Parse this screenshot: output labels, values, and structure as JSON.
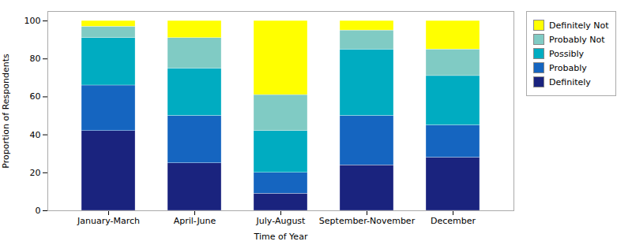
{
  "chart_data": {
    "type": "bar",
    "stacked": true,
    "xlabel": "Time of Year",
    "ylabel": "Proportion of Respondents",
    "categories": [
      "January-March",
      "April-June",
      "July-August",
      "September-November",
      "December"
    ],
    "series": [
      {
        "name": "Definitely",
        "color": "#1a237e",
        "values": [
          42,
          25,
          9,
          24,
          28
        ]
      },
      {
        "name": "Probably",
        "color": "#1565c0",
        "values": [
          24,
          25,
          11,
          26,
          17
        ]
      },
      {
        "name": "Possibly",
        "color": "#00acc1",
        "values": [
          25,
          25,
          22,
          35,
          26
        ]
      },
      {
        "name": "Probably Not",
        "color": "#80cbc4",
        "values": [
          6,
          16,
          19,
          10,
          14
        ]
      },
      {
        "name": "Definitely Not",
        "color": "#ffff00",
        "values": [
          3,
          9,
          39,
          5,
          15
        ]
      }
    ],
    "ylim": [
      0,
      105
    ],
    "yticks": [
      0,
      20,
      40,
      60,
      80,
      100
    ],
    "grid": false,
    "legend": "right"
  }
}
